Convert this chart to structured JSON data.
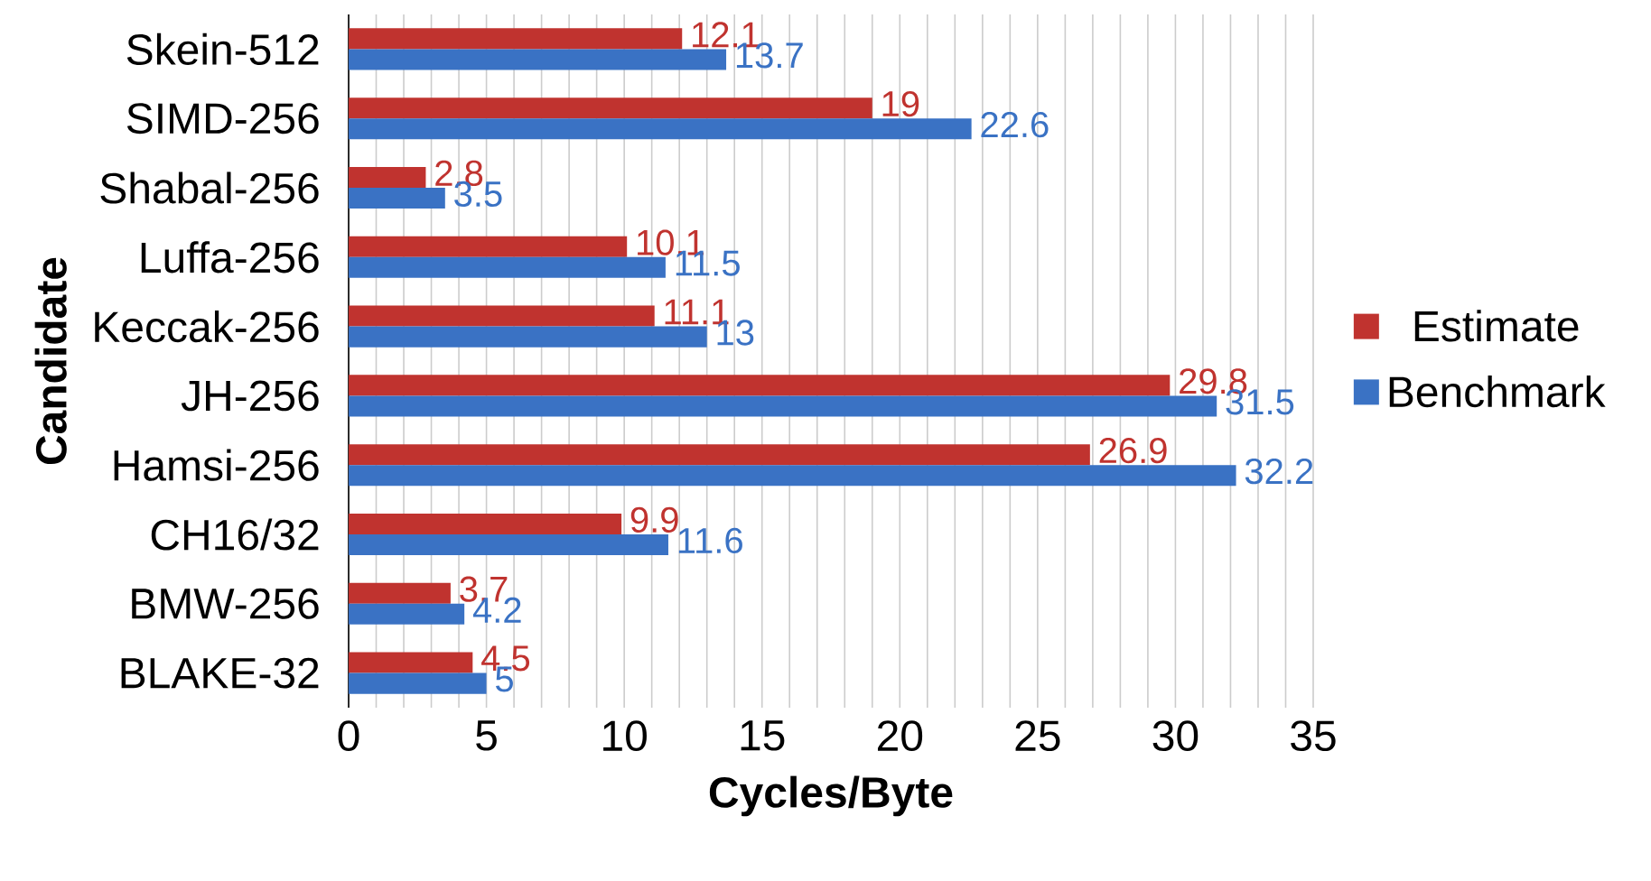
{
  "chart_data": {
    "type": "bar",
    "orientation": "horizontal",
    "xlabel": "Cycles/Byte",
    "ylabel": "Candidate",
    "categories": [
      "Skein-512",
      "SIMD-256",
      "Shabal-256",
      "Luffa-256",
      "Keccak-256",
      "JH-256",
      "Hamsi-256",
      "CH16/32",
      "BMW-256",
      "BLAKE-32"
    ],
    "series": [
      {
        "name": "Estimate",
        "color": "#c0332f",
        "values": [
          12.1,
          19,
          2.8,
          10.1,
          11.1,
          29.8,
          26.9,
          9.9,
          3.7,
          4.5
        ]
      },
      {
        "name": "Benchmark",
        "color": "#3a72c4",
        "values": [
          13.7,
          22.6,
          3.5,
          11.5,
          13,
          31.5,
          32.2,
          11.6,
          4.2,
          5
        ]
      }
    ],
    "xlim": [
      0,
      35
    ],
    "xticks": [
      0,
      {
        "value": 1,
        "label": null
      },
      {
        "value": 2,
        "label": null
      },
      {
        "value": 3,
        "label": null
      },
      {
        "value": 4,
        "label": null
      },
      5,
      {
        "value": 6,
        "label": null
      },
      {
        "value": 7,
        "label": null
      },
      {
        "value": 8,
        "label": null
      },
      {
        "value": 9,
        "label": null
      },
      10,
      {
        "value": 11,
        "label": null
      },
      {
        "value": 12,
        "label": null
      },
      {
        "value": 13,
        "label": null
      },
      {
        "value": 14,
        "label": null
      },
      15,
      {
        "value": 16,
        "label": null
      },
      {
        "value": 17,
        "label": null
      },
      {
        "value": 18,
        "label": null
      },
      {
        "value": 19,
        "label": null
      },
      20,
      {
        "value": 21,
        "label": null
      },
      {
        "value": 22,
        "label": null
      },
      {
        "value": 23,
        "label": null
      },
      {
        "value": 24,
        "label": null
      },
      25,
      {
        "value": 26,
        "label": null
      },
      {
        "value": 27,
        "label": null
      },
      {
        "value": 28,
        "label": null
      },
      {
        "value": 29,
        "label": null
      },
      30,
      {
        "value": 31,
        "label": null
      },
      {
        "value": 32,
        "label": null
      },
      {
        "value": 33,
        "label": null
      },
      {
        "value": 34,
        "label": null
      },
      35
    ],
    "grid": "x",
    "legend": "right",
    "data_labels": true
  }
}
